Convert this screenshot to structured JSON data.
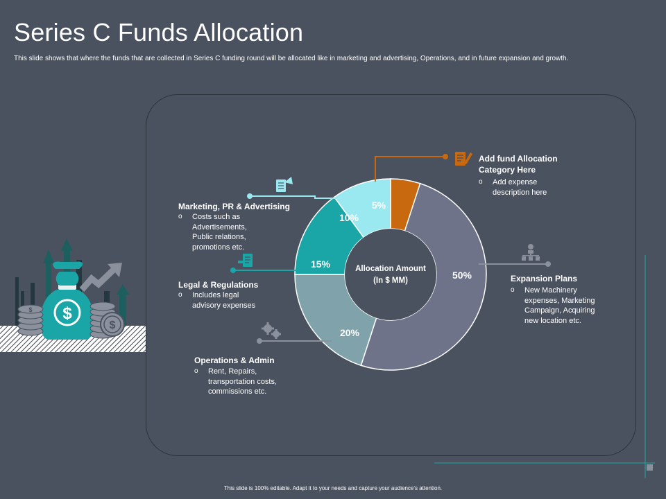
{
  "title": "Series C Funds Allocation",
  "subtitle": "This slide shows that where the funds that are collected in Series C  funding round will be allocated like  in marketing and advertising, Operations, and in  future expansion and growth.",
  "center_label": {
    "line1": "Allocation Amount",
    "line2": "(In $ MM)"
  },
  "chart_data": {
    "type": "pie",
    "slices": [
      {
        "label": "5%",
        "value": 5,
        "color": "#c8680f"
      },
      {
        "label": "50%",
        "value": 50,
        "color": "#6e7389"
      },
      {
        "label": "20%",
        "value": 20,
        "color": "#7fa2ab"
      },
      {
        "label": "15%",
        "value": 15,
        "color": "#1aa5a6"
      },
      {
        "label": "10%",
        "value": 10,
        "color": "#9be9f0"
      }
    ]
  },
  "categories": {
    "fund": {
      "title_line1": "Add fund Allocation",
      "title_line2": "Category Here",
      "desc": [
        "Add expense",
        "description here"
      ]
    },
    "marketing": {
      "title": "Marketing, PR & Advertising",
      "desc": [
        "Costs such as",
        "Advertisements,",
        "Public relations,",
        "promotions etc."
      ]
    },
    "legal": {
      "title": "Legal & Regulations",
      "desc": [
        "Includes legal",
        "advisory expenses"
      ]
    },
    "operations": {
      "title": "Operations & Admin",
      "desc": [
        "Rent, Repairs,",
        "transportation costs,",
        "commissions etc."
      ]
    },
    "expansion": {
      "title": "Expansion Plans",
      "desc": [
        "New Machinery",
        "expenses, Marketing",
        "Campaign, Acquiring",
        "new location etc."
      ]
    }
  },
  "bullet_symbol": "o",
  "footer": "This slide is 100% editable. Adapt it to your needs and capture your audience’s attention.",
  "icons": [
    "money-bag-icon",
    "document-pen-icon",
    "megaphone-icon",
    "legal-document-icon",
    "gears-icon",
    "hierarchy-icon"
  ],
  "colors": {
    "background": "#4a5260",
    "accent_orange": "#c8680f",
    "accent_teal": "#1aa5a6",
    "accent_light": "#9be9f0",
    "gray_line": "#8a909c"
  }
}
